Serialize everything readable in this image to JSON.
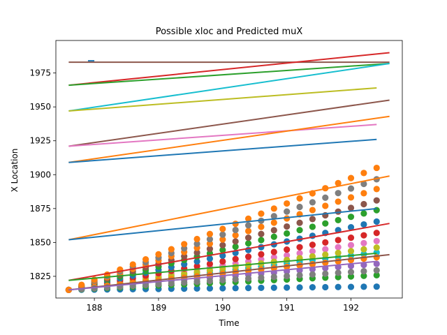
{
  "chart_data": {
    "type": "line",
    "title": "Possible xloc and Predicted muX",
    "xlabel": "Time",
    "ylabel": "X Location",
    "xlim": [
      187.4,
      192.8
    ],
    "ylim": [
      1809,
      1999
    ],
    "xticks": [
      188,
      189,
      190,
      191,
      192
    ],
    "yticks": [
      1825,
      1850,
      1875,
      1900,
      1925,
      1950,
      1975
    ],
    "grid": false,
    "legend": "none",
    "palette": [
      "#1f77b4",
      "#ff7f0e",
      "#2ca02c",
      "#d62728",
      "#9467bd",
      "#8c564b",
      "#e377c2",
      "#7f7f7f",
      "#bcbd22",
      "#17becf"
    ],
    "lines": [
      {
        "color": "#1f77b4",
        "x": [
          187.9,
          188.0
        ],
        "y": [
          1984,
          1984
        ]
      },
      {
        "color": "#8c564b",
        "x": [
          187.6,
          192.6
        ],
        "y": [
          1983,
          1983
        ]
      },
      {
        "color": "#d62728",
        "x": [
          187.6,
          192.6
        ],
        "y": [
          1966,
          1990
        ]
      },
      {
        "color": "#2ca02c",
        "x": [
          187.6,
          192.6
        ],
        "y": [
          1966,
          1982
        ]
      },
      {
        "color": "#17becf",
        "x": [
          187.6,
          192.6
        ],
        "y": [
          1947,
          1982
        ]
      },
      {
        "color": "#bcbd22",
        "x": [
          187.6,
          192.4
        ],
        "y": [
          1947,
          1964
        ]
      },
      {
        "color": "#8c564b",
        "x": [
          187.6,
          192.6
        ],
        "y": [
          1921,
          1955
        ]
      },
      {
        "color": "#e377c2",
        "x": [
          187.6,
          192.4
        ],
        "y": [
          1921,
          1937
        ]
      },
      {
        "color": "#ff7f0e",
        "x": [
          187.6,
          192.6
        ],
        "y": [
          1909,
          1943
        ]
      },
      {
        "color": "#1f77b4",
        "x": [
          187.6,
          192.4
        ],
        "y": [
          1909,
          1926
        ]
      },
      {
        "color": "#ff7f0e",
        "x": [
          187.6,
          192.6
        ],
        "y": [
          1852,
          1899
        ]
      },
      {
        "color": "#1f77b4",
        "x": [
          187.6,
          192.4
        ],
        "y": [
          1852,
          1875
        ]
      },
      {
        "color": "#d62728",
        "x": [
          187.6,
          192.6
        ],
        "y": [
          1822,
          1864
        ]
      },
      {
        "color": "#2ca02c",
        "x": [
          187.6,
          192.4
        ],
        "y": [
          1822,
          1842
        ]
      },
      {
        "color": "#8c564b",
        "x": [
          187.6,
          192.6
        ],
        "y": [
          1815,
          1841
        ]
      },
      {
        "color": "#9467bd",
        "x": [
          187.6,
          192.4
        ],
        "y": [
          1815,
          1836
        ]
      }
    ],
    "scatter": {
      "x": [
        187.6,
        187.8,
        188.0,
        188.2,
        188.4,
        188.6,
        188.8,
        189.0,
        189.2,
        189.4,
        189.6,
        189.8,
        190.0,
        190.2,
        190.4,
        190.6,
        190.8,
        191.0,
        191.2,
        191.4,
        191.6,
        191.8,
        192.0,
        192.2,
        192.4
      ],
      "series": [
        {
          "color": "#1f77b4",
          "y0": 1815,
          "slope": 0.2
        },
        {
          "color": "#2ca02c",
          "y0": 1815,
          "slope": 0.9
        },
        {
          "color": "#9467bd",
          "y0": 1815,
          "slope": 1.6
        },
        {
          "color": "#17becf",
          "y0": 1815,
          "slope": 2.3
        },
        {
          "color": "#e377c2",
          "y0": 1815,
          "slope": 3.0
        },
        {
          "color": "#bcbd22",
          "y0": 1815,
          "slope": 2.6
        },
        {
          "color": "#d62728",
          "y0": 1815,
          "slope": 3.5
        },
        {
          "color": "#1f77b4",
          "y0": 1815,
          "slope": 4.2
        },
        {
          "color": "#2ca02c",
          "y0": 1815,
          "slope": 4.9
        },
        {
          "color": "#8c564b",
          "y0": 1815,
          "slope": 5.5
        },
        {
          "color": "#ff7f0e",
          "y0": 1815,
          "slope": 2.0
        },
        {
          "color": "#7f7f7f",
          "y0": 1815,
          "slope": 1.2
        },
        {
          "color": "#ff7f0e",
          "y0": 1815,
          "slope": 6.2
        },
        {
          "color": "#7f7f7f",
          "y0": 1815,
          "slope": 6.8
        },
        {
          "color": "#ff7f0e",
          "y0": 1815,
          "slope": 7.5
        }
      ]
    }
  }
}
